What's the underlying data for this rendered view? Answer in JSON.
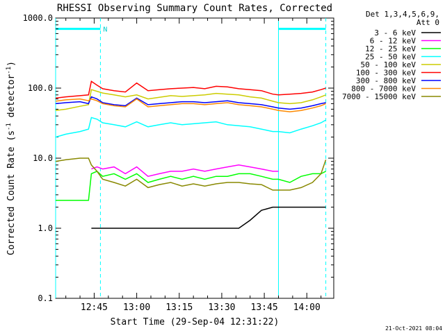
{
  "chart_data": {
    "type": "line",
    "title": "RHESSI Observing Summary Count Rates, Corrected",
    "xlabel": "Start Time (29-Sep-04 12:31:22)",
    "ylabel_prefix": "Corrected Count Rate (s",
    "ylabel_sup1": "-1",
    "ylabel_mid": " detector",
    "ylabel_sup2": "-1",
    "ylabel_suffix": ")",
    "timestamp": "21-Oct-2021 08:04",
    "x_range_min": [
      31.4,
      89.5
    ],
    "x_ticks": [
      {
        "value": 45,
        "label": "12:45"
      },
      {
        "value": 60,
        "label": "13:00"
      },
      {
        "value": 75,
        "label": "13:15"
      },
      {
        "value": 90,
        "label": "13:30"
      },
      {
        "value": 105,
        "label": "13:45"
      },
      {
        "value": 120,
        "label": "14:00"
      }
    ],
    "y_scale": "log",
    "ylim": [
      0.1,
      1000
    ],
    "y_ticks": [
      {
        "value": 0.1,
        "label": "0.1"
      },
      {
        "value": 1,
        "label": "1.0"
      },
      {
        "value": 10,
        "label": "10.0"
      },
      {
        "value": 100,
        "label": "100.0"
      },
      {
        "value": 1000,
        "label": "1000.0"
      }
    ],
    "legend": {
      "header1": "Det 1,3,4,5,6,9,",
      "header2": "Att 0",
      "placement": "right"
    },
    "night_marker": "N",
    "bars": {
      "color": "#00ffff",
      "y": 700,
      "segments": [
        [
          31.4,
          47.2
        ],
        [
          110.0,
          126.7
        ]
      ]
    },
    "vlines": [
      {
        "x": 31.4,
        "style": "solid"
      },
      {
        "x": 47.2,
        "style": "dashed"
      },
      {
        "x": 110.0,
        "style": "solid"
      },
      {
        "x": 126.7,
        "style": "dashed"
      }
    ],
    "x": [
      31.4,
      35,
      40,
      43,
      44,
      46,
      48,
      52,
      56,
      60,
      64,
      68,
      72,
      76,
      80,
      84,
      88,
      92,
      96,
      100,
      104,
      108,
      110,
      114,
      118,
      122,
      125,
      126.7
    ],
    "series": [
      {
        "name": "3 - 6 keV",
        "color": "#000000",
        "values": [
          null,
          null,
          null,
          null,
          1.0,
          1.0,
          1.0,
          1.0,
          1.0,
          1.0,
          1.0,
          1.0,
          1.0,
          1.0,
          1.0,
          1.0,
          1.0,
          1.0,
          1.0,
          1.3,
          1.8,
          2.0,
          2.0,
          2.0,
          2.0,
          2.0,
          2.0,
          2.0
        ]
      },
      {
        "name": "6 - 12 keV",
        "color": "#ff00ff",
        "values": [
          null,
          null,
          null,
          null,
          7.0,
          7.5,
          7.0,
          7.5,
          6.0,
          7.5,
          5.5,
          6.0,
          6.5,
          6.5,
          7.0,
          6.5,
          7.0,
          7.5,
          8.0,
          7.5,
          7.0,
          6.5,
          6.5,
          null,
          null,
          null,
          null,
          null
        ]
      },
      {
        "name": "12 - 25 keV",
        "color": "#00ff00",
        "values": [
          2.5,
          2.5,
          2.5,
          2.5,
          6.0,
          6.5,
          5.5,
          6.0,
          5.0,
          6.0,
          4.5,
          5.0,
          5.5,
          5.0,
          5.5,
          5.0,
          5.5,
          5.5,
          6.0,
          6.0,
          5.5,
          5.0,
          5.0,
          4.5,
          5.5,
          6.0,
          6.0,
          6.5
        ]
      },
      {
        "name": "25 - 50 keV",
        "color": "#00ffff",
        "values": [
          20,
          22,
          24,
          26,
          38,
          36,
          32,
          30,
          28,
          33,
          28,
          30,
          32,
          30,
          31,
          32,
          33,
          30,
          29,
          28,
          26,
          24,
          24,
          23,
          26,
          29,
          32,
          35
        ]
      },
      {
        "name": "50 - 100 keV",
        "color": "#cccc00",
        "values": [
          48,
          50,
          55,
          58,
          95,
          90,
          85,
          80,
          75,
          80,
          70,
          74,
          78,
          76,
          78,
          80,
          84,
          82,
          80,
          75,
          72,
          65,
          62,
          60,
          62,
          68,
          75,
          80
        ]
      },
      {
        "name": "100 - 300 keV",
        "color": "#ff0000",
        "values": [
          72,
          75,
          78,
          80,
          125,
          110,
          98,
          92,
          88,
          118,
          92,
          95,
          98,
          100,
          102,
          98,
          106,
          104,
          98,
          95,
          92,
          82,
          80,
          82,
          84,
          88,
          95,
          100
        ]
      },
      {
        "name": "300 - 800 keV",
        "color": "#0000ff",
        "values": [
          60,
          62,
          64,
          60,
          75,
          70,
          62,
          58,
          56,
          72,
          58,
          60,
          62,
          64,
          64,
          62,
          64,
          66,
          62,
          60,
          58,
          54,
          52,
          50,
          52,
          56,
          60,
          62
        ]
      },
      {
        "name": "800 - 7000 keV",
        "color": "#ff8800",
        "values": [
          65,
          68,
          70,
          66,
          70,
          66,
          60,
          56,
          54,
          70,
          54,
          56,
          58,
          60,
          60,
          58,
          60,
          62,
          58,
          56,
          54,
          50,
          48,
          46,
          48,
          52,
          56,
          60
        ]
      },
      {
        "name": "7000 - 15000 keV",
        "color": "#888800",
        "values": [
          9.0,
          9.5,
          10.0,
          10.0,
          8.0,
          6.5,
          5.0,
          4.5,
          4.0,
          5.0,
          3.8,
          4.2,
          4.5,
          4.0,
          4.3,
          4.0,
          4.3,
          4.5,
          4.5,
          4.3,
          4.2,
          3.5,
          3.5,
          3.5,
          3.8,
          4.5,
          6.0,
          9.5
        ]
      }
    ]
  }
}
